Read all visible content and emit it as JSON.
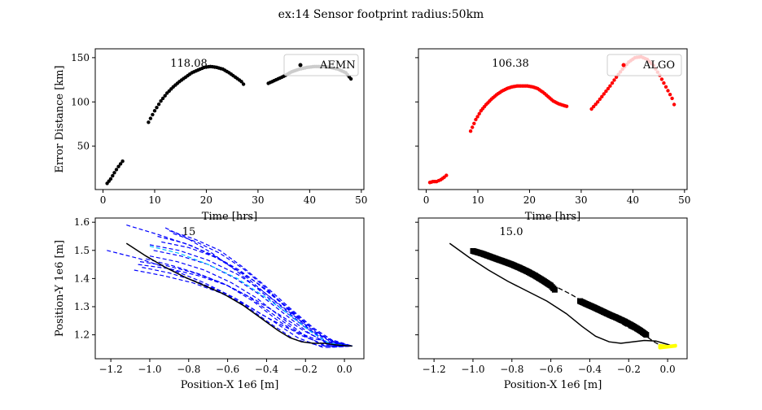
{
  "figure": {
    "title": "ex:14  Sensor footprint radius:50km"
  },
  "chart_data": [
    {
      "type": "scatter",
      "panel": "top-left",
      "xlabel": "Time [hrs]",
      "ylabel": "Error Distance [km]",
      "xlim": [
        -1.5,
        50.5
      ],
      "ylim": [
        1,
        160
      ],
      "xticks": [
        "0",
        "10",
        "20",
        "30",
        "40",
        "50"
      ],
      "yticks": [
        "50",
        "100",
        "150"
      ],
      "annotation": "118.08",
      "legend": {
        "position": "top-right",
        "label": "AEMN"
      },
      "series": [
        {
          "name": "AEMN",
          "color": "#000000",
          "segments": [
            {
              "x": [
                0.8,
                1.5,
                2.2,
                3.0,
                3.8
              ],
              "y": [
                8,
                13,
                20,
                27,
                33
              ]
            },
            {
              "x": [
                8.8,
                10.0,
                11.2,
                12.4,
                13.6,
                14.8,
                16.0,
                17.2,
                18.4,
                19.6,
                20.8,
                22.0,
                23.2,
                24.4,
                25.6,
                26.8,
                27.2
              ],
              "y": [
                77,
                90,
                101,
                110,
                117,
                123,
                128,
                133,
                136,
                139,
                140,
                139,
                137,
                133,
                128,
                123,
                120
              ]
            },
            {
              "x": [
                32.0,
                33.5,
                35.0,
                36.5,
                38.0,
                39.5,
                41.0,
                42.5,
                44.0,
                45.5,
                47.0,
                48.0
              ],
              "y": [
                121,
                125,
                129,
                134,
                137,
                139,
                140,
                140,
                139,
                137,
                133,
                126
              ]
            }
          ]
        }
      ]
    },
    {
      "type": "scatter",
      "panel": "top-right",
      "xlabel": "Time [hrs]",
      "ylabel": "",
      "xlim": [
        -1.5,
        50.5
      ],
      "ylim": [
        1,
        160
      ],
      "xticks": [
        "0",
        "10",
        "20",
        "30",
        "40",
        "50"
      ],
      "yticks": [],
      "annotation": "106.38",
      "legend": {
        "position": "top-right",
        "label": "ALGO"
      },
      "series": [
        {
          "name": "ALGO",
          "color": "#ff0000",
          "segments": [
            {
              "x": [
                0.7,
                1.3,
                2.0,
                2.8,
                3.5,
                3.9
              ],
              "y": [
                9,
                10,
                10,
                12,
                15,
                17
              ]
            },
            {
              "x": [
                8.6,
                9.6,
                10.6,
                11.6,
                12.6,
                13.6,
                14.6,
                15.6,
                16.6,
                17.6,
                18.6,
                19.6,
                20.6,
                21.6,
                22.6,
                23.6,
                24.6,
                25.6,
                26.6,
                27.2
              ],
              "y": [
                67,
                80,
                90,
                97,
                103,
                108,
                112,
                115,
                117,
                118,
                118,
                118,
                117,
                115,
                111,
                106,
                101,
                98,
                96,
                95
              ]
            },
            {
              "x": [
                32.0,
                33.2,
                34.4,
                35.6,
                36.8,
                38.0,
                39.2,
                40.4,
                41.6,
                42.8,
                44.0,
                45.2,
                46.4,
                47.6,
                48.0
              ],
              "y": [
                92,
                100,
                109,
                118,
                128,
                137,
                145,
                150,
                151,
                148,
                141,
                130,
                117,
                104,
                97
              ]
            }
          ]
        }
      ]
    },
    {
      "type": "line",
      "panel": "bottom-left",
      "xlabel": "Position-X 1e6 [m]",
      "ylabel": "Position-Y 1e6 [m]",
      "xlim": [
        -1.28,
        0.1
      ],
      "ylim": [
        1.115,
        1.615
      ],
      "xticks": [
        "−1.2",
        "−1.0",
        "−0.8",
        "−0.6",
        "−0.4",
        "−0.2",
        "0.0"
      ],
      "yticks": [
        "1.2",
        "1.3",
        "1.4",
        "1.5",
        "1.6"
      ],
      "annotation": "15",
      "truth_track": {
        "x": [
          -1.12,
          -1.02,
          -0.92,
          -0.82,
          -0.72,
          -0.62,
          -0.52,
          -0.45,
          -0.4,
          -0.34,
          -0.28,
          -0.22,
          -0.16,
          -0.1,
          -0.05,
          0.0,
          0.04
        ],
        "y": [
          1.525,
          1.48,
          1.44,
          1.405,
          1.375,
          1.345,
          1.305,
          1.27,
          1.245,
          1.215,
          1.19,
          1.175,
          1.17,
          1.17,
          1.165,
          1.162,
          1.16
        ]
      },
      "estimate_tracks": [
        {
          "color": "#0000ff",
          "x": [
            -1.12,
            -0.95,
            -0.78,
            -0.62,
            -0.46,
            -0.32,
            -0.2,
            -0.1,
            0.04
          ],
          "y": [
            1.59,
            1.555,
            1.515,
            1.46,
            1.39,
            1.31,
            1.24,
            1.19,
            1.16
          ]
        },
        {
          "color": "#0000ff",
          "x": [
            -1.22,
            -1.05,
            -0.88,
            -0.72,
            -0.56,
            -0.42,
            -0.28,
            -0.15,
            0.04
          ],
          "y": [
            1.5,
            1.47,
            1.43,
            1.385,
            1.33,
            1.27,
            1.22,
            1.185,
            1.16
          ]
        },
        {
          "color": "#0000ff",
          "x": [
            -0.92,
            -0.8,
            -0.68,
            -0.56,
            -0.44,
            -0.32,
            -0.2,
            -0.08,
            0.04
          ],
          "y": [
            1.58,
            1.54,
            1.49,
            1.43,
            1.36,
            1.29,
            1.225,
            1.18,
            1.16
          ]
        },
        {
          "color": "#0000ff",
          "x": [
            -1.06,
            -0.9,
            -0.75,
            -0.6,
            -0.46,
            -0.33,
            -0.21,
            -0.1,
            0.04
          ],
          "y": [
            1.45,
            1.435,
            1.41,
            1.375,
            1.325,
            1.27,
            1.215,
            1.175,
            1.16
          ]
        },
        {
          "color": "#0000ff",
          "x": [
            -1.0,
            -0.85,
            -0.7,
            -0.55,
            -0.42,
            -0.3,
            -0.18,
            -0.07,
            0.04
          ],
          "y": [
            1.52,
            1.5,
            1.465,
            1.415,
            1.355,
            1.29,
            1.225,
            1.175,
            1.16
          ]
        },
        {
          "color": "#0000ff",
          "x": [
            -1.02,
            -0.88,
            -0.74,
            -0.6,
            -0.47,
            -0.35,
            -0.23,
            -0.1,
            0.04
          ],
          "y": [
            1.47,
            1.445,
            1.415,
            1.375,
            1.32,
            1.255,
            1.2,
            1.165,
            1.16
          ]
        },
        {
          "color": "#0000ff",
          "x": [
            -0.96,
            -0.82,
            -0.68,
            -0.54,
            -0.4,
            -0.28,
            -0.16,
            -0.06,
            0.04
          ],
          "y": [
            1.55,
            1.525,
            1.485,
            1.43,
            1.36,
            1.29,
            1.22,
            1.175,
            1.16
          ]
        },
        {
          "color": "#0000ff",
          "x": [
            -1.04,
            -0.9,
            -0.76,
            -0.62,
            -0.5,
            -0.38,
            -0.26,
            -0.12,
            0.04
          ],
          "y": [
            1.44,
            1.42,
            1.39,
            1.35,
            1.3,
            1.24,
            1.185,
            1.16,
            1.16
          ]
        },
        {
          "color": "#0000ff",
          "x": [
            -0.98,
            -0.84,
            -0.7,
            -0.56,
            -0.43,
            -0.31,
            -0.19,
            -0.08,
            0.04
          ],
          "y": [
            1.5,
            1.48,
            1.45,
            1.4,
            1.34,
            1.275,
            1.21,
            1.165,
            1.16
          ]
        },
        {
          "color": "#0000ff",
          "x": [
            -1.08,
            -0.93,
            -0.78,
            -0.64,
            -0.5,
            -0.37,
            -0.24,
            -0.11,
            0.04
          ],
          "y": [
            1.43,
            1.41,
            1.385,
            1.35,
            1.305,
            1.25,
            1.19,
            1.155,
            1.16
          ]
        },
        {
          "color": "#0000ff",
          "x": [
            -0.9,
            -0.77,
            -0.64,
            -0.52,
            -0.4,
            -0.28,
            -0.16,
            -0.05,
            0.04
          ],
          "y": [
            1.57,
            1.54,
            1.5,
            1.44,
            1.37,
            1.295,
            1.225,
            1.175,
            1.16
          ]
        },
        {
          "color": "#0000ff",
          "x": [
            -1.0,
            -0.86,
            -0.72,
            -0.58,
            -0.45,
            -0.33,
            -0.21,
            -0.09,
            0.04
          ],
          "y": [
            1.48,
            1.46,
            1.43,
            1.385,
            1.33,
            1.265,
            1.2,
            1.155,
            1.16
          ]
        },
        {
          "color": "#0000ff",
          "x": [
            -0.94,
            -0.8,
            -0.66,
            -0.53,
            -0.41,
            -0.29,
            -0.17,
            -0.07,
            0.04
          ],
          "y": [
            1.53,
            1.51,
            1.475,
            1.42,
            1.35,
            1.28,
            1.21,
            1.165,
            1.16
          ]
        },
        {
          "color": "#0000ff",
          "x": [
            -1.05,
            -0.91,
            -0.77,
            -0.63,
            -0.49,
            -0.36,
            -0.23,
            -0.1,
            0.04
          ],
          "y": [
            1.46,
            1.445,
            1.42,
            1.385,
            1.335,
            1.27,
            1.205,
            1.16,
            1.16
          ]
        },
        {
          "color": "#0000ff",
          "x": [
            -0.88,
            -0.76,
            -0.64,
            -0.52,
            -0.4,
            -0.29,
            -0.18,
            -0.08,
            0.04
          ],
          "y": [
            1.56,
            1.53,
            1.49,
            1.435,
            1.365,
            1.29,
            1.22,
            1.17,
            1.16
          ]
        },
        {
          "color": "#00bfff",
          "x": [
            -1.0,
            -0.85,
            -0.7,
            -0.55,
            -0.42,
            -0.3,
            -0.18,
            -0.08,
            0.04
          ],
          "y": [
            1.515,
            1.49,
            1.45,
            1.4,
            1.34,
            1.28,
            1.215,
            1.17,
            1.16
          ]
        }
      ]
    },
    {
      "type": "line",
      "panel": "bottom-right",
      "xlabel": "Position-X 1e6 [m]",
      "ylabel": "",
      "xlim": [
        -1.28,
        0.1
      ],
      "ylim": [
        1.115,
        1.615
      ],
      "xticks": [
        "−1.2",
        "−1.0",
        "−0.8",
        "−0.6",
        "−0.4",
        "−0.2",
        "0.0"
      ],
      "yticks": [],
      "annotation": "15.0",
      "truth_track": {
        "x": [
          -1.12,
          -1.02,
          -0.92,
          -0.82,
          -0.72,
          -0.62,
          -0.52,
          -0.44,
          -0.37,
          -0.3,
          -0.24,
          -0.18,
          -0.12,
          -0.06,
          -0.02,
          0.02,
          0.04
        ],
        "y": [
          1.525,
          1.475,
          1.43,
          1.39,
          1.355,
          1.32,
          1.275,
          1.23,
          1.195,
          1.175,
          1.17,
          1.175,
          1.18,
          1.178,
          1.17,
          1.162,
          1.16
        ]
      },
      "estimate_dashed": {
        "x": [
          -0.97,
          -0.85,
          -0.72,
          -0.6,
          -0.5,
          -0.4,
          -0.3,
          -0.2,
          -0.12,
          -0.07,
          -0.03,
          0.04
        ],
        "y": [
          1.5,
          1.465,
          1.425,
          1.38,
          1.345,
          1.305,
          1.265,
          1.225,
          1.2,
          1.175,
          1.16,
          1.16
        ]
      },
      "square_markers": [
        {
          "x": [
            -1.0,
            -0.96,
            -0.92,
            -0.88,
            -0.84,
            -0.8,
            -0.76,
            -0.72,
            -0.68,
            -0.64,
            -0.6,
            -0.58
          ],
          "y": [
            1.498,
            1.49,
            1.48,
            1.47,
            1.46,
            1.45,
            1.438,
            1.425,
            1.41,
            1.393,
            1.375,
            1.36
          ]
        },
        {
          "x": [
            -0.45,
            -0.42,
            -0.38,
            -0.34,
            -0.3,
            -0.26,
            -0.22,
            -0.18,
            -0.14,
            -0.11
          ],
          "y": [
            1.32,
            1.31,
            1.298,
            1.285,
            1.272,
            1.26,
            1.247,
            1.232,
            1.215,
            1.2
          ]
        }
      ],
      "highlight": {
        "color": "#ffff00",
        "x": [
          -0.04,
          -0.02,
          0.0,
          0.02,
          0.04
        ],
        "y": [
          1.162,
          1.16,
          1.158,
          1.16,
          1.162
        ]
      }
    }
  ]
}
